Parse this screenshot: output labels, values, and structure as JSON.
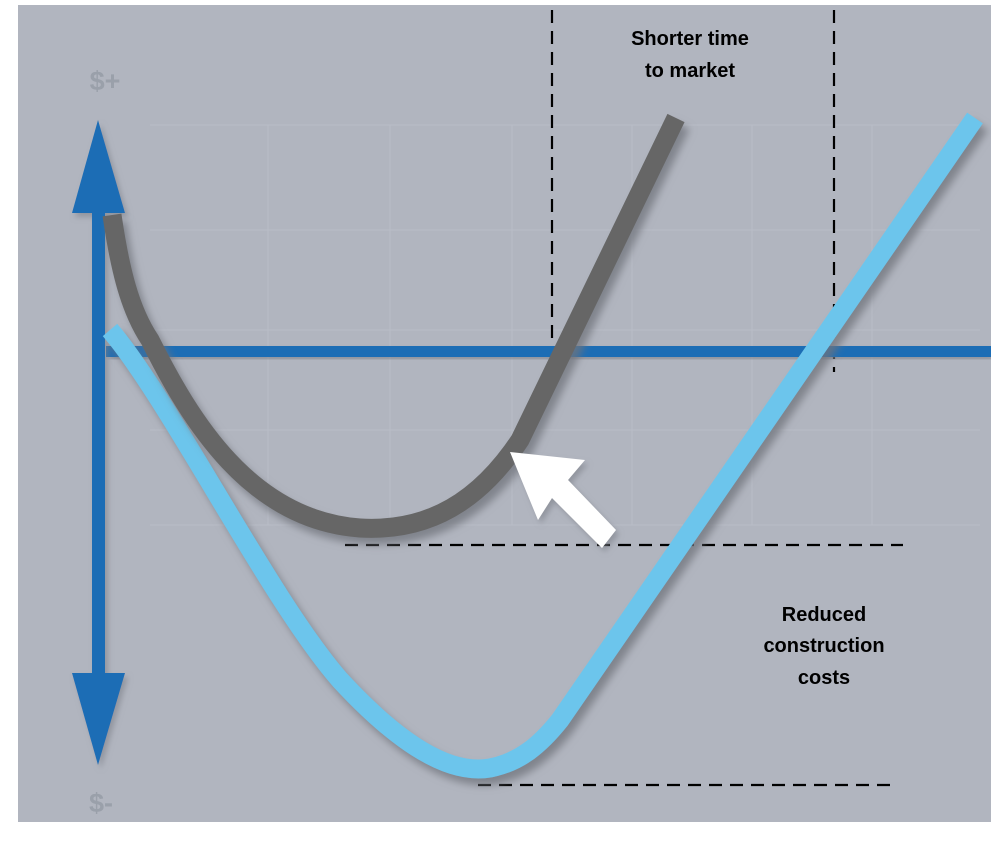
{
  "axis": {
    "top_label": "$+",
    "bottom_label": "$-"
  },
  "annotations": {
    "time_line_1": "Shorter time",
    "time_line_2": "to market",
    "cost_line_1": "Reduced",
    "cost_line_2": "construction",
    "cost_line_3": "costs"
  },
  "colors": {
    "background": "#b1b5bf",
    "axis_blue": "#1f6db5",
    "improved_curve": "#666666",
    "original_curve": "#6cc5ec",
    "arrow": "#ffffff",
    "label_gray": "#9aa0aa",
    "annotation_text": "#000000"
  }
}
